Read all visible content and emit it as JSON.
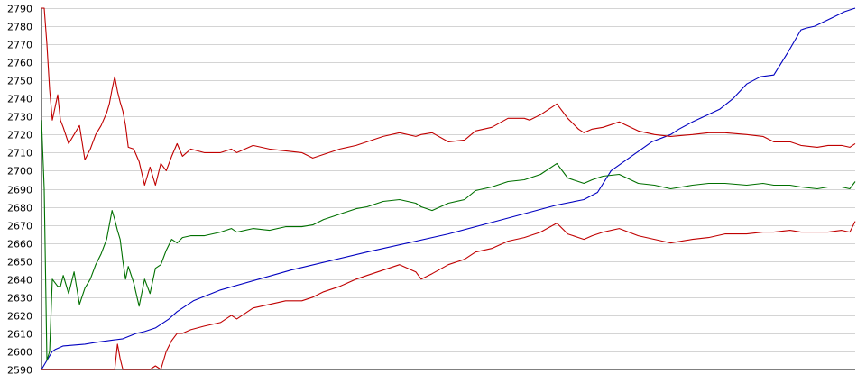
{
  "chart_data": {
    "type": "line",
    "title": "",
    "xlabel": "",
    "ylabel": "",
    "ylim": [
      2590,
      2790
    ],
    "yticks": [
      2590,
      2600,
      2610,
      2620,
      2630,
      2640,
      2650,
      2660,
      2670,
      2680,
      2690,
      2700,
      2710,
      2720,
      2730,
      2740,
      2750,
      2760,
      2770,
      2780,
      2790
    ],
    "xlim": [
      0,
      300
    ],
    "grid": true,
    "legend": "none",
    "series": [
      {
        "color": "#0000c0",
        "x": [
          0,
          4,
          5,
          8,
          16,
          20,
          30,
          35,
          38,
          42,
          47,
          50,
          56,
          66,
          92,
          120,
          150,
          170,
          190,
          200,
          205,
          210,
          225,
          232,
          235,
          240,
          250,
          255,
          260,
          265,
          270,
          275,
          280,
          282,
          285,
          292,
          296,
          300
        ],
        "y": [
          2590,
          2600,
          2601,
          2603,
          2604,
          2605,
          2607,
          2610,
          2611,
          2613,
          2618,
          2622,
          2628,
          2634,
          2645,
          2655,
          2665,
          2673,
          2681,
          2684,
          2688,
          2700,
          2716,
          2720,
          2723,
          2727,
          2734,
          2740,
          2748,
          2752,
          2753,
          2765,
          2778,
          2779,
          2780,
          2785,
          2788,
          2790
        ]
      },
      {
        "color": "#c00000",
        "x": [
          0,
          1,
          2,
          3,
          4,
          5,
          6,
          7,
          8,
          10,
          12,
          14,
          16,
          18,
          20,
          22,
          24,
          25,
          26,
          27,
          28,
          29,
          30,
          31,
          32,
          34,
          36,
          38,
          40,
          42,
          44,
          46,
          48,
          50,
          52,
          55,
          60,
          66,
          70,
          72,
          78,
          84,
          90,
          96,
          100,
          104,
          110,
          116,
          120,
          126,
          132,
          138,
          140,
          144,
          150,
          156,
          160,
          166,
          172,
          178,
          180,
          184,
          190,
          194,
          198,
          200,
          203,
          207,
          213,
          220,
          226,
          232,
          240,
          246,
          252,
          260,
          266,
          270,
          276,
          280,
          286,
          290,
          295,
          298,
          300
        ],
        "y": [
          2790,
          2790,
          2770,
          2745,
          2728,
          2735,
          2742,
          2728,
          2724,
          2715,
          2720,
          2725,
          2706,
          2712,
          2720,
          2725,
          2732,
          2737,
          2745,
          2752,
          2744,
          2738,
          2733,
          2725,
          2713,
          2712,
          2705,
          2692,
          2702,
          2692,
          2704,
          2700,
          2708,
          2715,
          2708,
          2712,
          2710,
          2710,
          2712,
          2710,
          2714,
          2712,
          2711,
          2710,
          2707,
          2709,
          2712,
          2714,
          2716,
          2719,
          2721,
          2719,
          2720,
          2721,
          2716,
          2717,
          2722,
          2724,
          2729,
          2729,
          2728,
          2731,
          2737,
          2729,
          2723,
          2721,
          2723,
          2724,
          2727,
          2722,
          2720,
          2719,
          2720,
          2721,
          2721,
          2720,
          2719,
          2716,
          2716,
          2714,
          2713,
          2714,
          2714,
          2713,
          2715
        ]
      },
      {
        "color": "#007000",
        "x": [
          0,
          1,
          2,
          3,
          4,
          5,
          6,
          7,
          8,
          10,
          12,
          14,
          16,
          18,
          20,
          22,
          24,
          25,
          26,
          27,
          28,
          29,
          30,
          31,
          32,
          34,
          36,
          38,
          40,
          42,
          44,
          46,
          48,
          50,
          52,
          55,
          60,
          66,
          70,
          72,
          78,
          84,
          90,
          96,
          100,
          104,
          110,
          116,
          120,
          126,
          132,
          138,
          140,
          144,
          150,
          156,
          160,
          166,
          172,
          178,
          180,
          184,
          190,
          194,
          198,
          200,
          203,
          207,
          213,
          220,
          226,
          232,
          240,
          246,
          252,
          260,
          266,
          270,
          276,
          280,
          286,
          290,
          295,
          298,
          300
        ],
        "y": [
          2728,
          2690,
          2595,
          2600,
          2640,
          2638,
          2636,
          2636,
          2642,
          2632,
          2644,
          2626,
          2635,
          2640,
          2648,
          2654,
          2662,
          2670,
          2678,
          2673,
          2667,
          2662,
          2650,
          2640,
          2647,
          2638,
          2625,
          2640,
          2632,
          2646,
          2648,
          2656,
          2662,
          2660,
          2663,
          2664,
          2664,
          2666,
          2668,
          2666,
          2668,
          2667,
          2669,
          2669,
          2670,
          2673,
          2676,
          2679,
          2680,
          2683,
          2684,
          2682,
          2680,
          2678,
          2682,
          2684,
          2689,
          2691,
          2694,
          2695,
          2696,
          2698,
          2704,
          2696,
          2694,
          2693,
          2695,
          2697,
          2698,
          2693,
          2692,
          2690,
          2692,
          2693,
          2693,
          2692,
          2693,
          2692,
          2692,
          2691,
          2690,
          2691,
          2691,
          2690,
          2694
        ]
      },
      {
        "color": "#c00000",
        "x": [
          0,
          4,
          8,
          12,
          16,
          18,
          19,
          20,
          21,
          22,
          23,
          24,
          25,
          26,
          27,
          28,
          29,
          30,
          32,
          34,
          36,
          38,
          40,
          42,
          44,
          46,
          48,
          50,
          52,
          55,
          60,
          66,
          70,
          72,
          78,
          84,
          90,
          96,
          100,
          104,
          110,
          116,
          120,
          126,
          132,
          138,
          140,
          144,
          150,
          156,
          160,
          166,
          172,
          178,
          180,
          184,
          190,
          194,
          198,
          200,
          203,
          207,
          213,
          220,
          226,
          232,
          240,
          246,
          252,
          260,
          266,
          270,
          276,
          280,
          286,
          290,
          295,
          298,
          300
        ],
        "y": [
          2590,
          2590,
          2590,
          2590,
          2590,
          2590,
          2590,
          2590,
          2590,
          2590,
          2590,
          2590,
          2590,
          2590,
          2590,
          2604,
          2596,
          2590,
          2590,
          2590,
          2590,
          2590,
          2590,
          2592,
          2590,
          2600,
          2606,
          2610,
          2610,
          2612,
          2614,
          2616,
          2620,
          2618,
          2624,
          2626,
          2628,
          2628,
          2630,
          2633,
          2636,
          2640,
          2642,
          2645,
          2648,
          2644,
          2640,
          2643,
          2648,
          2651,
          2655,
          2657,
          2661,
          2663,
          2664,
          2666,
          2671,
          2665,
          2663,
          2662,
          2664,
          2666,
          2668,
          2664,
          2662,
          2660,
          2662,
          2663,
          2665,
          2665,
          2666,
          2666,
          2667,
          2666,
          2666,
          2666,
          2667,
          2666,
          2672
        ]
      }
    ]
  }
}
